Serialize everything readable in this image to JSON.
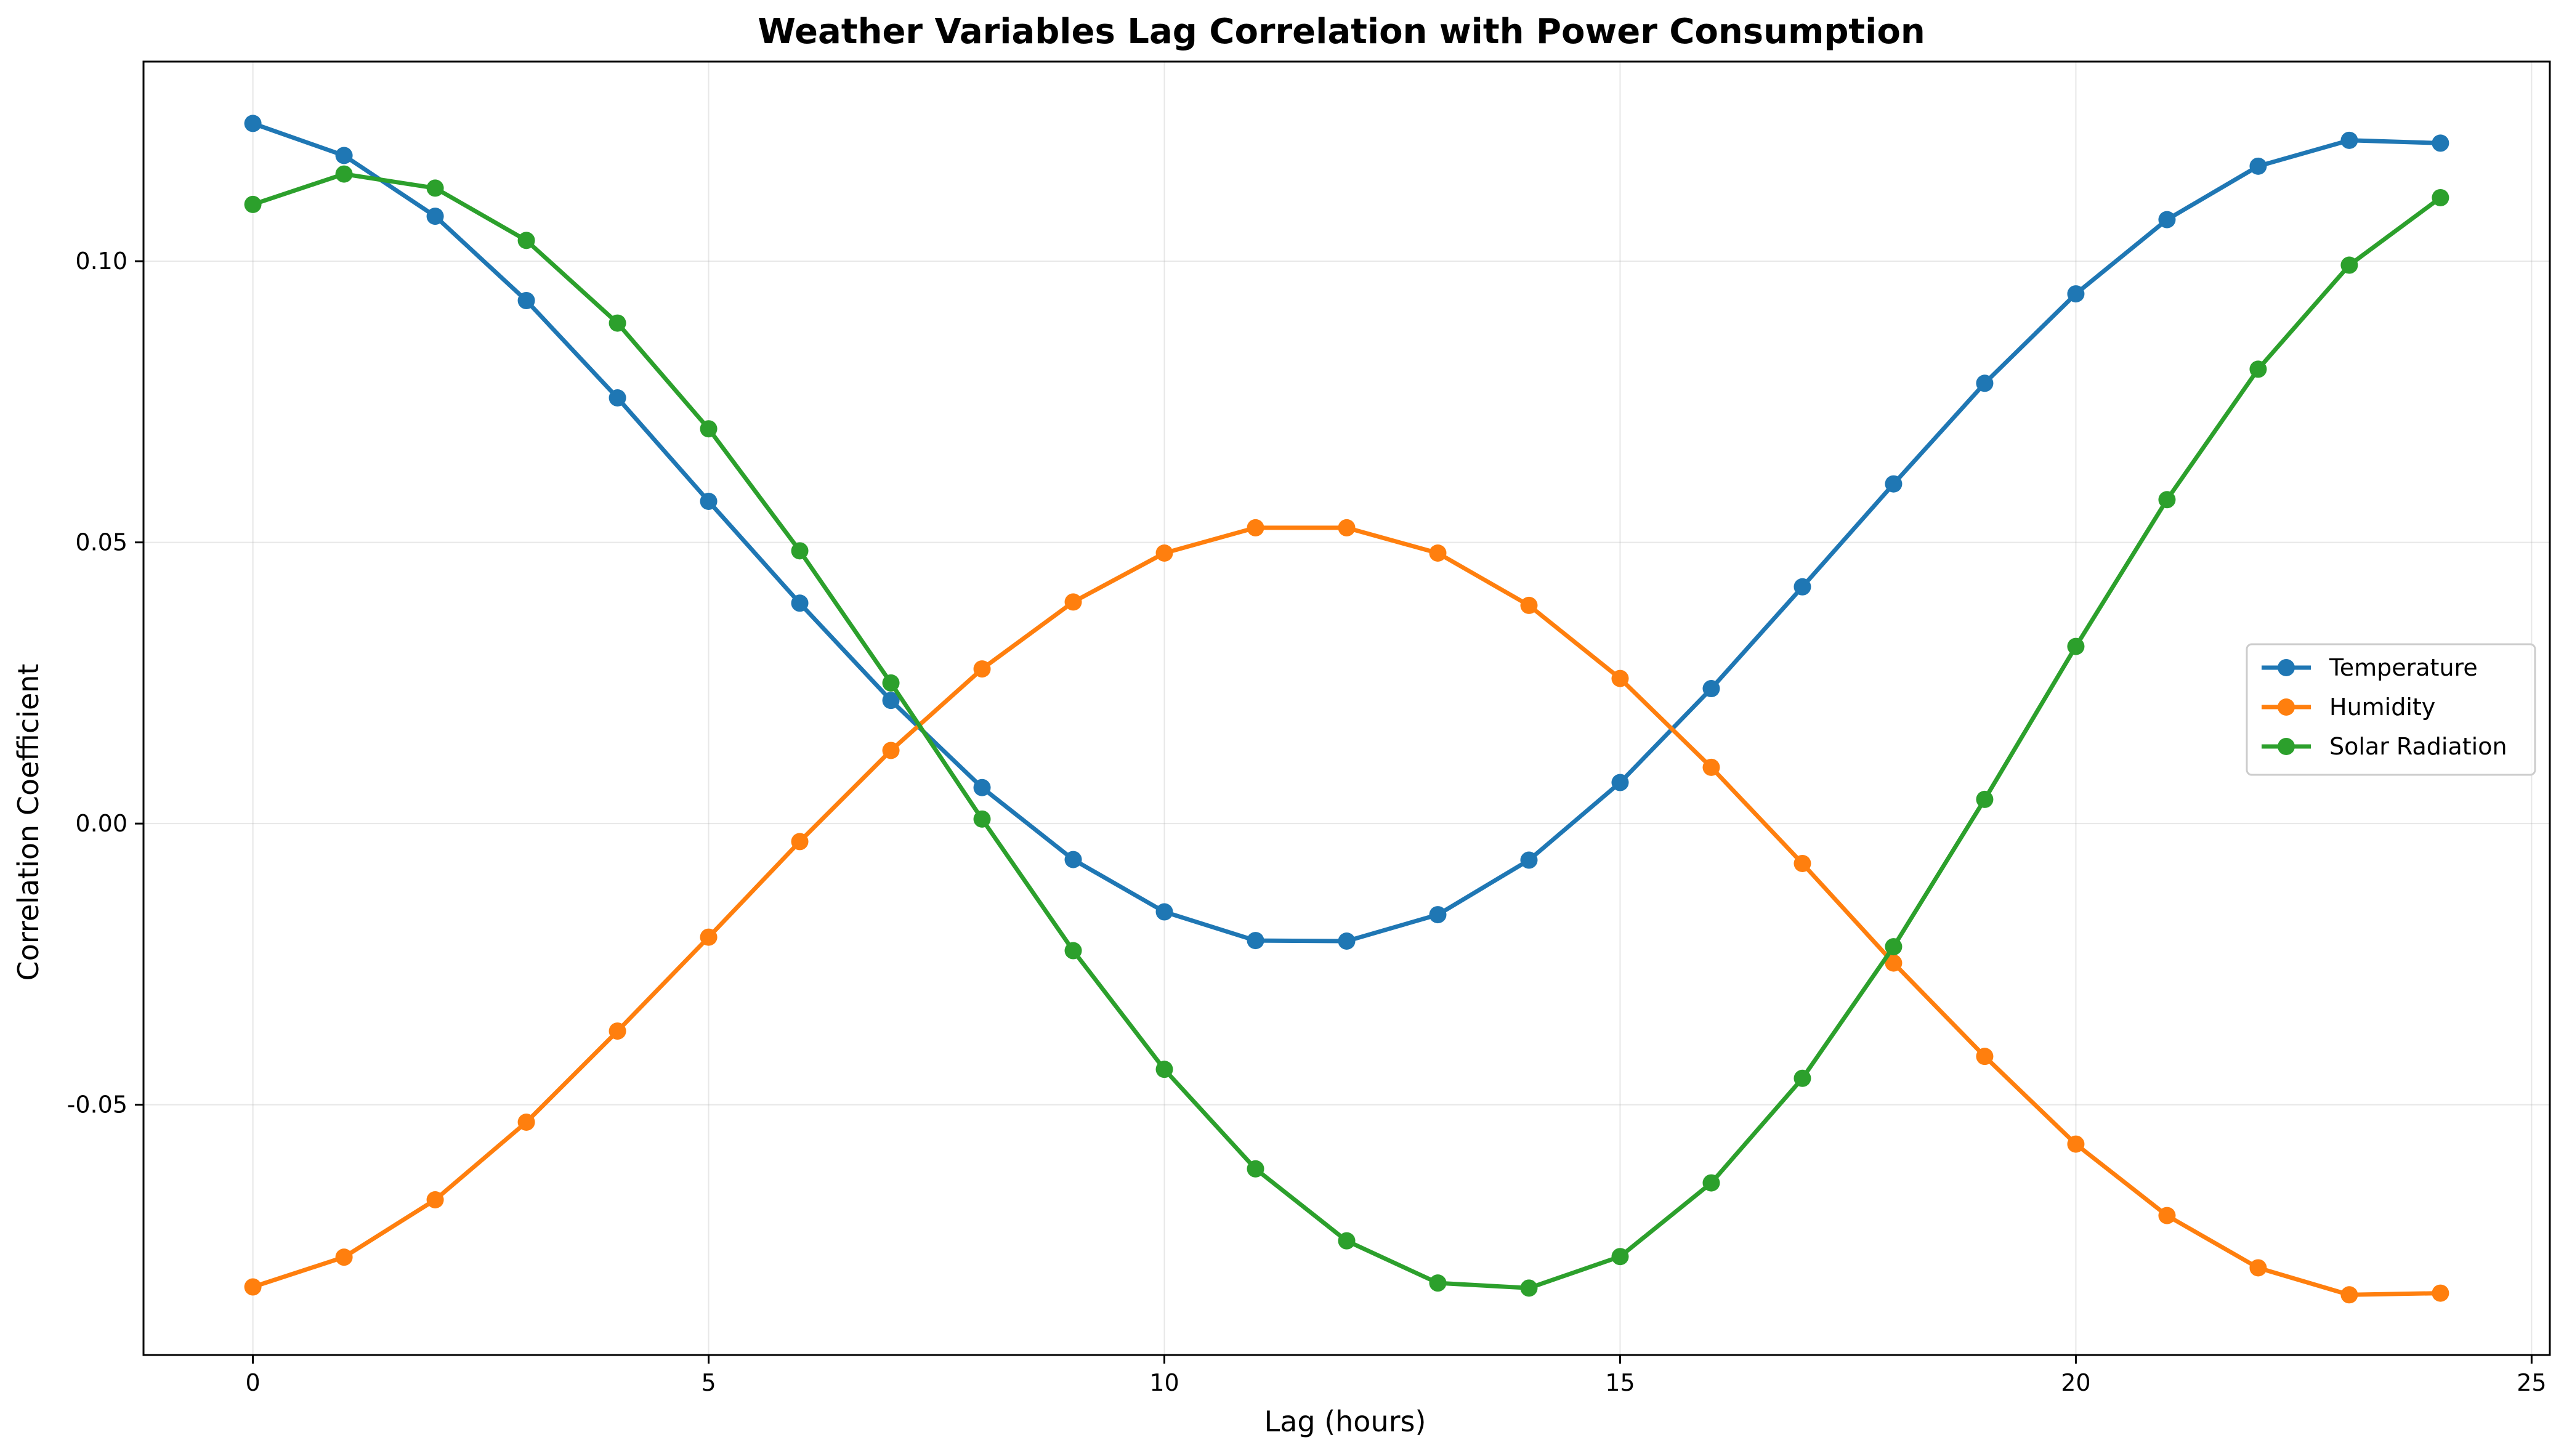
{
  "chart_data": {
    "type": "line",
    "title": "Weather Variables Lag Correlation with Power Consumption",
    "xlabel": "Lag (hours)",
    "ylabel": "Correlation Coefficient",
    "xlim": [
      -1.2,
      25.2
    ],
    "ylim": [
      -0.0945,
      0.1355
    ],
    "xticks": [
      0,
      5,
      10,
      15,
      20,
      25
    ],
    "xtick_labels": [
      "0",
      "5",
      "10",
      "15",
      "20",
      "25"
    ],
    "yticks": [
      -0.05,
      0.0,
      0.05,
      0.1
    ],
    "ytick_labels": [
      "-0.05",
      "0.00",
      "0.05",
      "0.10"
    ],
    "grid": true,
    "legend_position": "center-right",
    "x": [
      0,
      1,
      2,
      3,
      4,
      5,
      6,
      7,
      8,
      9,
      10,
      11,
      12,
      13,
      14,
      15,
      16,
      17,
      18,
      19,
      20,
      21,
      22,
      23,
      24
    ],
    "series": [
      {
        "name": "Temperature",
        "color": "#1f77b4",
        "values": [
          0.1245,
          0.1188,
          0.108,
          0.093,
          0.0757,
          0.0573,
          0.0392,
          0.0219,
          0.0064,
          -0.0064,
          -0.0157,
          -0.0208,
          -0.0209,
          -0.0162,
          -0.0065,
          0.0073,
          0.024,
          0.0421,
          0.0604,
          0.0783,
          0.0942,
          0.1074,
          0.1169,
          0.1215,
          0.121
        ]
      },
      {
        "name": "Humidity",
        "color": "#ff7f0e",
        "values": [
          -0.0824,
          -0.0771,
          -0.0669,
          -0.0531,
          -0.0369,
          -0.0202,
          -0.0032,
          0.013,
          0.0275,
          0.0394,
          0.0481,
          0.0526,
          0.0526,
          0.0481,
          0.0388,
          0.0258,
          0.01,
          -0.0071,
          -0.0248,
          -0.0414,
          -0.057,
          -0.0697,
          -0.079,
          -0.0838,
          -0.0835
        ]
      },
      {
        "name": "Solar Radiation",
        "color": "#2ca02c",
        "values": [
          0.1101,
          0.1155,
          0.113,
          0.1037,
          0.089,
          0.0702,
          0.0485,
          0.025,
          0.0008,
          -0.0226,
          -0.0437,
          -0.0614,
          -0.0742,
          -0.0817,
          -0.0826,
          -0.077,
          -0.0639,
          -0.0453,
          -0.0219,
          0.0043,
          0.0315,
          0.0576,
          0.0808,
          0.0993,
          0.1113
        ]
      }
    ]
  }
}
